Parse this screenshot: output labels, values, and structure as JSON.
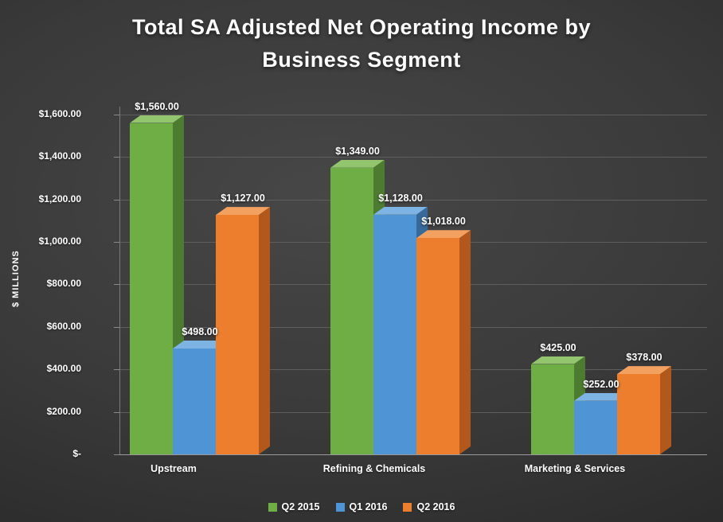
{
  "chart_data": {
    "type": "bar",
    "style": "3d-clustered-column",
    "title": "Total SA Adjusted Net Operating Income by Business Segment",
    "xlabel": "",
    "ylabel": "$ MILLIONS",
    "categories": [
      "Upstream",
      "Refining & Chemicals",
      "Marketing & Services"
    ],
    "series": [
      {
        "name": "Q2 2015",
        "color": "#6fae45",
        "color_top": "#92c56d",
        "color_side": "#4d7c30",
        "values": [
          1560,
          1349,
          425
        ],
        "labels": [
          "$1,560.00",
          "$1,349.00",
          "$425.00"
        ]
      },
      {
        "name": "Q1 2016",
        "color": "#4f94d4",
        "color_top": "#7db4e3",
        "color_side": "#38699b",
        "values": [
          498,
          1128,
          252
        ],
        "labels": [
          "$498.00",
          "$1,128.00",
          "$252.00"
        ]
      },
      {
        "name": "Q2 2016",
        "color": "#ec7e2e",
        "color_top": "#f3a161",
        "color_side": "#b2581c",
        "values": [
          1127,
          1018,
          378
        ],
        "labels": [
          "$1,127.00",
          "$1,018.00",
          "$378.00"
        ]
      }
    ],
    "y_axis": {
      "min": 0,
      "max": 1600,
      "step": 200,
      "ticks": [
        {
          "value": 0,
          "label": "$-"
        },
        {
          "value": 200,
          "label": "$200.00"
        },
        {
          "value": 400,
          "label": "$400.00"
        },
        {
          "value": 600,
          "label": "$600.00"
        },
        {
          "value": 800,
          "label": "$800.00"
        },
        {
          "value": 1000,
          "label": "$1,000.00"
        },
        {
          "value": 1200,
          "label": "$1,200.00"
        },
        {
          "value": 1400,
          "label": "$1,400.00"
        },
        {
          "value": 1600,
          "label": "$1,600.00"
        }
      ]
    },
    "legend_position": "bottom",
    "grid": true,
    "background": "#3a3a3a",
    "text_color": "#ffffff"
  }
}
